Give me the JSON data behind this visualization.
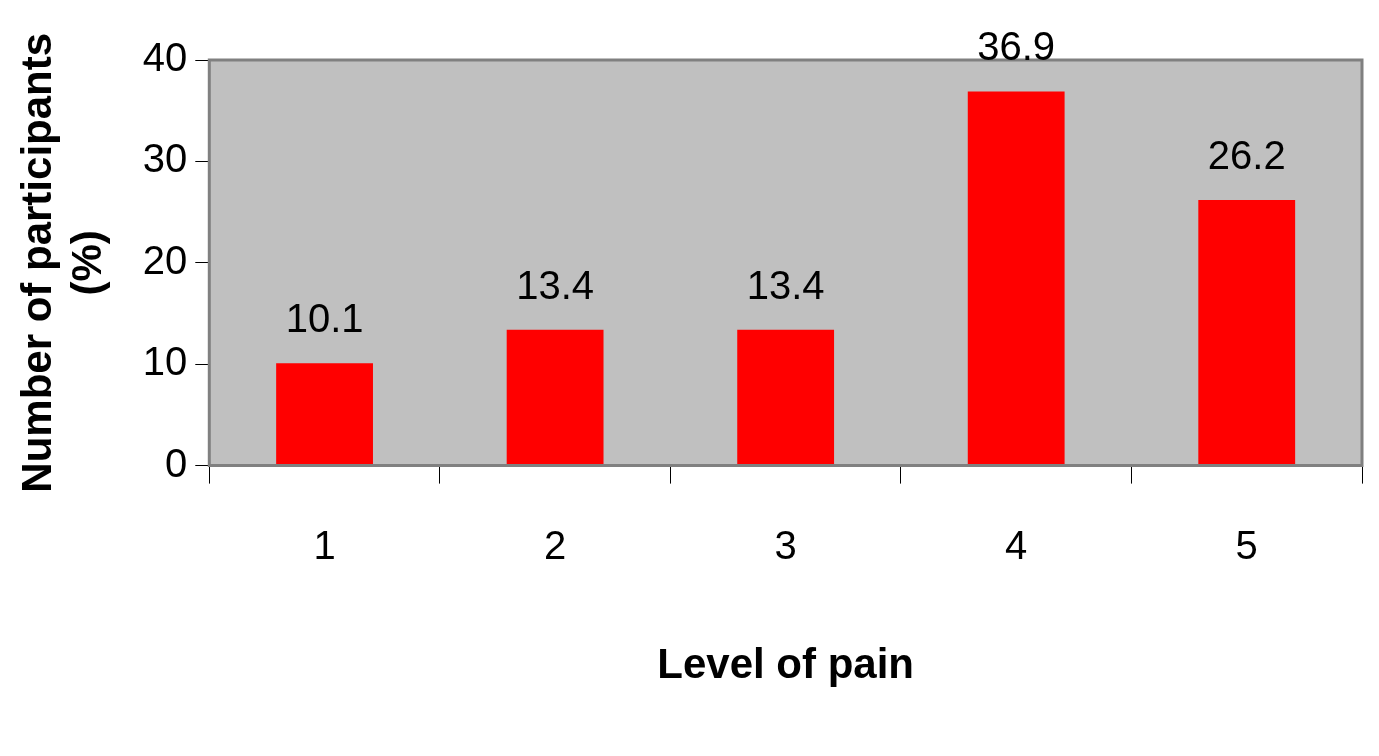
{
  "chart_data": {
    "type": "bar",
    "xlabel": "Level of pain",
    "ylabel": "Number of participants (%)",
    "categories": [
      "1",
      "2",
      "3",
      "4",
      "5"
    ],
    "values": [
      10.1,
      13.4,
      13.4,
      36.9,
      26.2
    ],
    "color": "#ff0000",
    "ylim": [
      0,
      40
    ],
    "yticks": [
      0,
      10,
      20,
      30,
      40
    ],
    "grid": false,
    "legend": false,
    "data_labels": true
  }
}
